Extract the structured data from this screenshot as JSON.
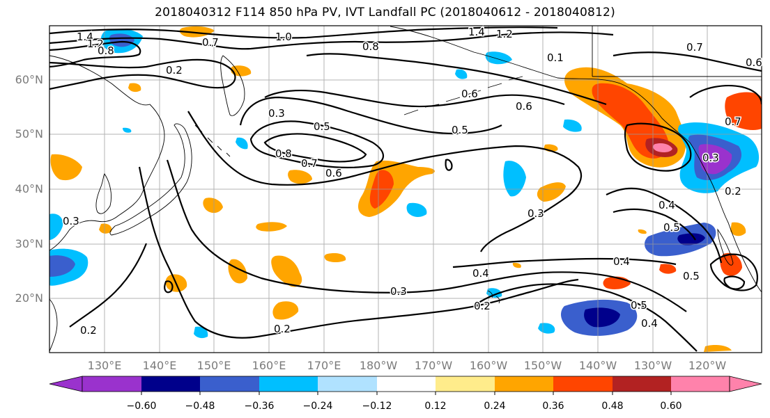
{
  "title": "2018040312 F114 850 hPa PV, IVT Landfall PC (2018040612 - 2018040812)",
  "lat_labels": [
    "60°N",
    "50°N",
    "40°N",
    "30°N",
    "20°N"
  ],
  "lon_labels": [
    "130°E",
    "140°E",
    "150°E",
    "160°E",
    "170°E",
    "180°W",
    "170°W",
    "160°W",
    "150°W",
    "140°W",
    "130°W",
    "120°W"
  ],
  "colorbar": {
    "colors": [
      "#9a32cd",
      "#00008b",
      "#3a5fcd",
      "#00bfff",
      "#b0e2ff",
      "#ffffff",
      "#ffec8b",
      "#ffa500",
      "#ff4500",
      "#b22222",
      "#ff82ab"
    ],
    "tick_labels": [
      "−0.60",
      "−0.48",
      "−0.36",
      "−0.24",
      "−0.12",
      "0.12",
      "0.24",
      "0.36",
      "0.48",
      "0.60"
    ]
  },
  "contour_labels": [
    "1.4",
    "1.2",
    "0.8",
    "0.7",
    "1.0",
    "0.8",
    "1.4",
    "1.2",
    "0.7",
    "0.6",
    "0.2",
    "0.6",
    "0.6",
    "0.3",
    "0.5",
    "0.5",
    "0.8",
    "0.7",
    "0.6",
    "0.3",
    "0.4",
    "0.5",
    "0.4",
    "0.3",
    "0.4",
    "0.5",
    "0.2",
    "0.3",
    "0.2",
    "0.2",
    "0.4",
    "0.5",
    "0.3",
    "0.7",
    "0.2",
    "0.1"
  ]
}
